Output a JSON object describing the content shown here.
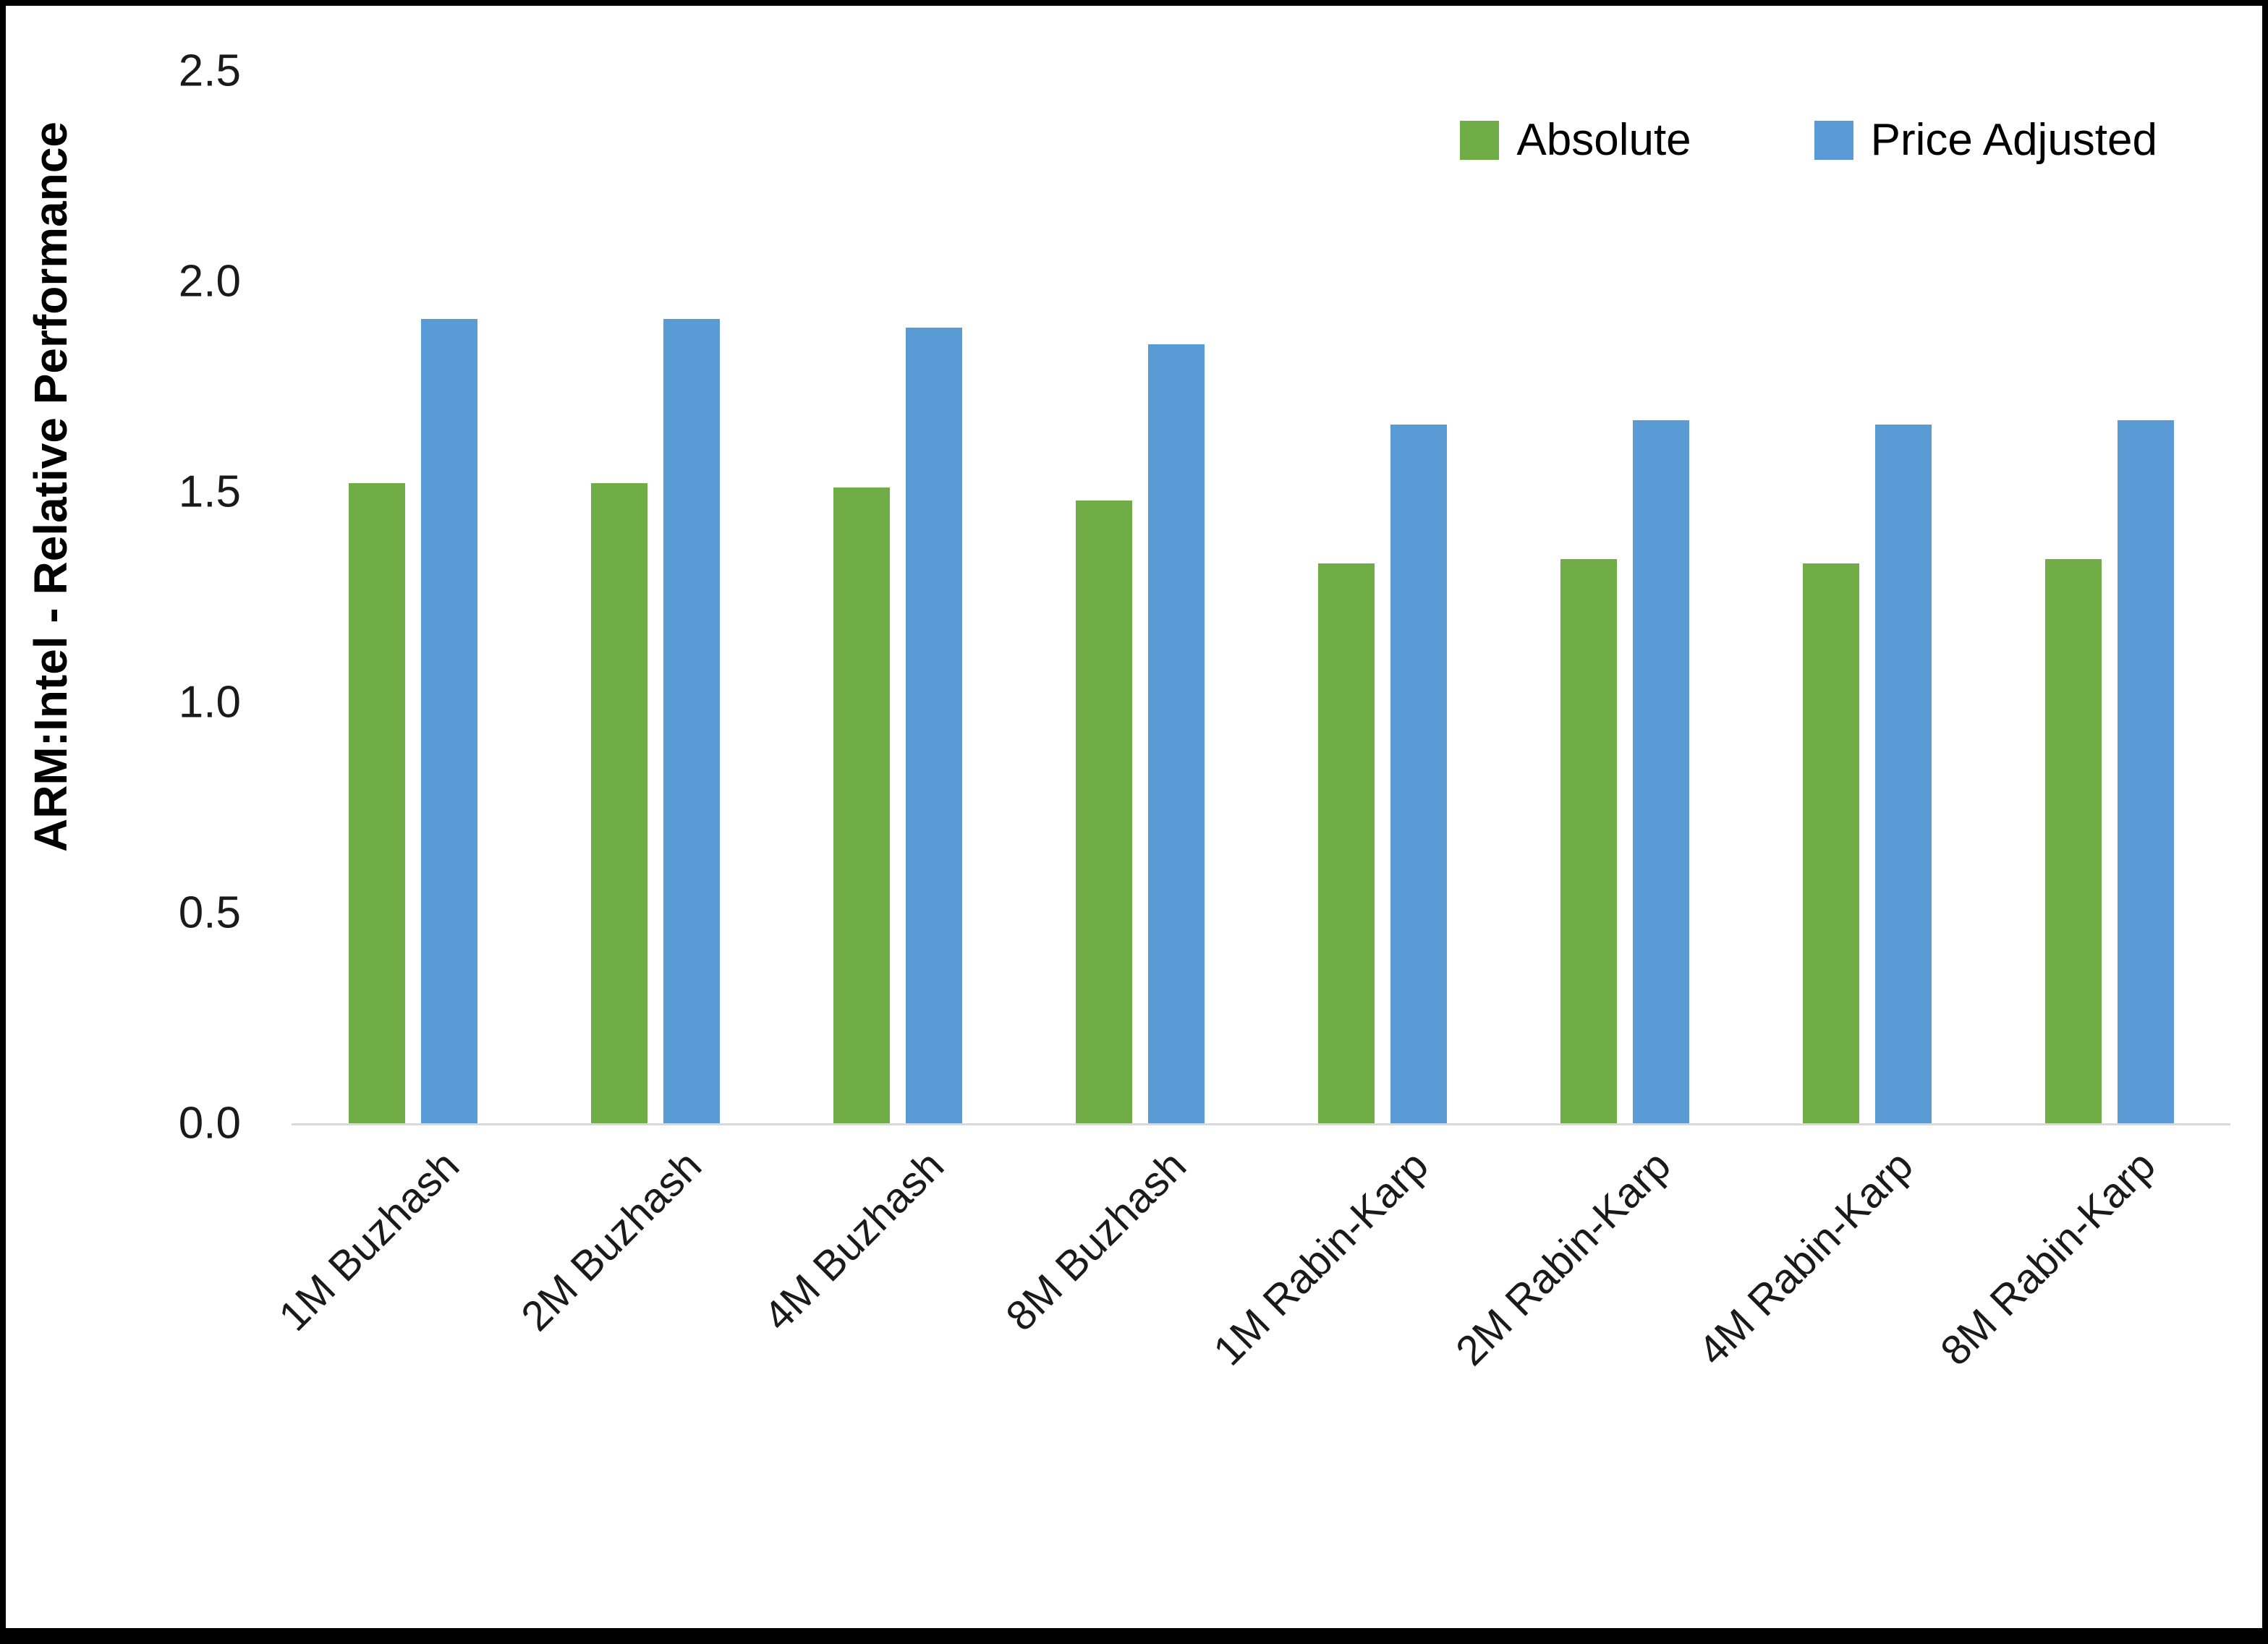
{
  "figure": {
    "background": "#ffffff",
    "border_color": "#000000"
  },
  "y_axis": {
    "title": "ARM:Intel - Relative Performance"
  },
  "chart_data": {
    "type": "bar",
    "title": "",
    "xlabel": "",
    "ylabel": "ARM:Intel - Relative Performance",
    "ylim": [
      0,
      2.5
    ],
    "ytick_step": 0.5,
    "ytick_decimals": 1,
    "grid": false,
    "legend_position": "top-right",
    "categories": [
      "1M Buzhash",
      "2M Buzhash",
      "4M Buzhash",
      "8M Buzhash",
      "1M Rabin-Karp",
      "2M Rabin-Karp",
      "4M Rabin-Karp",
      "8M Rabin-Karp"
    ],
    "series": [
      {
        "name": "Absolute",
        "color": "#70AD47",
        "values": [
          1.52,
          1.52,
          1.51,
          1.48,
          1.33,
          1.34,
          1.33,
          1.34
        ]
      },
      {
        "name": "Price Adjusted",
        "color": "#5B9BD5",
        "values": [
          1.91,
          1.91,
          1.89,
          1.85,
          1.66,
          1.67,
          1.66,
          1.67
        ]
      }
    ]
  }
}
